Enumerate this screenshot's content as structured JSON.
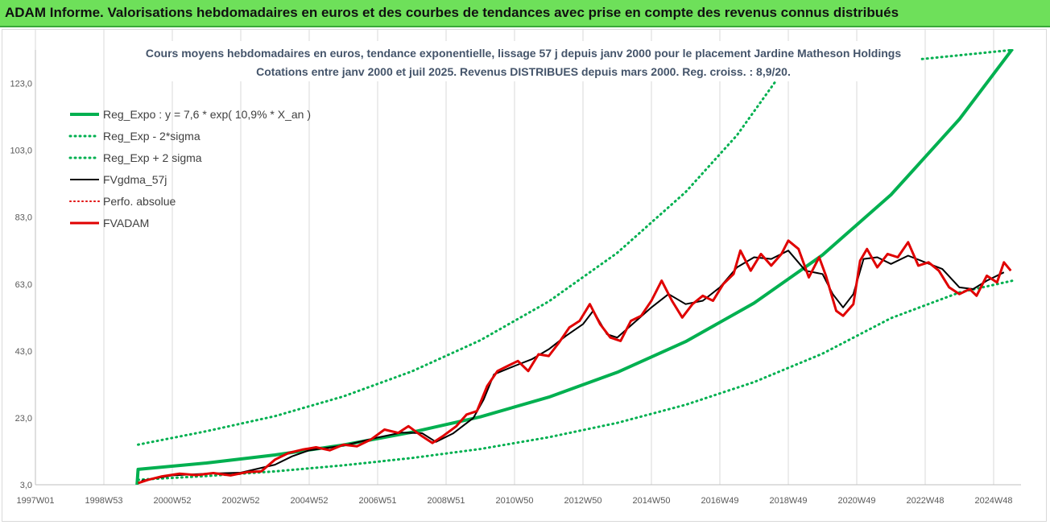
{
  "banner": {
    "title": "ADAM Informe. Valorisations hebdomadaires en euros et des courbes de tendances avec prise en compte des revenus connus distribués",
    "background": "#6ee05a"
  },
  "chart_data": {
    "type": "line",
    "title": [
      "Cours moyens hebdomadaires en euros, tendance exponentielle, lissage 57 j depuis janv 2000 pour le placement Jardine Matheson Holdings",
      "Cotations entre janv 2000 et juil 2025. Revenus DISTRIBUES depuis mars 2000. Reg. croiss. : 8,9/20."
    ],
    "xlabel": "",
    "ylabel": "",
    "grid": "vertical",
    "legend_position": "top-left",
    "x_range": [
      1997.0,
      2025.8
    ],
    "x_tick_values": [
      1997.0,
      1999.0,
      2001.0,
      2003.0,
      2005.0,
      2007.0,
      2009.0,
      2011.0,
      2013.0,
      2015.0,
      2017.0,
      2019.0,
      2021.0,
      2023.0,
      2025.0
    ],
    "x_tick_labels": [
      "1997W01",
      "1998W53",
      "2000W52",
      "2002W52",
      "2004W52",
      "2006W51",
      "2008W51",
      "2010W50",
      "2012W50",
      "2014W50",
      "2016W49",
      "2018W49",
      "2020W49",
      "2022W48",
      "2024W48"
    ],
    "y_range": [
      3.0,
      133.0
    ],
    "y_ticks": [
      "3,0",
      "23,0",
      "43,0",
      "63,0",
      "83,0",
      "103,0",
      "123,0"
    ],
    "y_tick_values": [
      3,
      23,
      43,
      63,
      83,
      103,
      123
    ],
    "series": [
      {
        "name": "Reg_Expo : y = 7,6 * exp( 10,9% *  X_an )",
        "color": "#00b050",
        "style": "solid",
        "width": 4,
        "points": [
          [
            1999.97,
            3.0
          ],
          [
            2000.0,
            7.6
          ],
          [
            2002,
            9.5
          ],
          [
            2004,
            11.9
          ],
          [
            2006,
            14.9
          ],
          [
            2008,
            18.7
          ],
          [
            2010,
            23.3
          ],
          [
            2012,
            29.2
          ],
          [
            2014,
            36.6
          ],
          [
            2016,
            45.8
          ],
          [
            2018,
            57.3
          ],
          [
            2020,
            71.7
          ],
          [
            2022,
            89.7
          ],
          [
            2024,
            112.3
          ],
          [
            2025.55,
            133.3
          ]
        ]
      },
      {
        "name": "Reg_Exp - 2*sigma",
        "color": "#00b050",
        "style": "dotted",
        "width": 3,
        "points": [
          [
            2000,
            4.5
          ],
          [
            2002,
            5.6
          ],
          [
            2004,
            7.0
          ],
          [
            2006,
            8.8
          ],
          [
            2008,
            11.0
          ],
          [
            2010,
            13.7
          ],
          [
            2012,
            17.2
          ],
          [
            2014,
            21.5
          ],
          [
            2016,
            26.9
          ],
          [
            2018,
            33.7
          ],
          [
            2020,
            42.2
          ],
          [
            2022,
            52.8
          ],
          [
            2024,
            60.5
          ],
          [
            2025.55,
            64.0
          ]
        ]
      },
      {
        "name": "Reg_Exp + 2 sigma",
        "color": "#00b050",
        "style": "dotted",
        "width": 3,
        "points": [
          [
            2000,
            15.0
          ],
          [
            2002,
            19.0
          ],
          [
            2004,
            23.5
          ],
          [
            2006,
            29.4
          ],
          [
            2008,
            36.9
          ],
          [
            2010,
            46.2
          ],
          [
            2012,
            57.8
          ],
          [
            2014,
            72.3
          ],
          [
            2016,
            90.5
          ],
          [
            2017.5,
            107.5
          ],
          [
            2018.6,
            123.2
          ],
          [
            2018.75,
            126.0
          ],
          [
            2025.55,
            133.0
          ]
        ]
      },
      {
        "name": "FVgdma_57j",
        "color": "#000000",
        "style": "solid",
        "width": 2,
        "points": [
          [
            2000.1,
            4.2
          ],
          [
            2001,
            5.8
          ],
          [
            2002,
            6.3
          ],
          [
            2003,
            6.6
          ],
          [
            2004,
            9.0
          ],
          [
            2004.5,
            11.5
          ],
          [
            2005,
            13.3
          ],
          [
            2006,
            14.7
          ],
          [
            2007,
            17.1
          ],
          [
            2007.7,
            18.6
          ],
          [
            2008.3,
            18.4
          ],
          [
            2008.7,
            15.8
          ],
          [
            2009.2,
            18.3
          ],
          [
            2009.8,
            23.0
          ],
          [
            2010.1,
            28.5
          ],
          [
            2010.4,
            36.0
          ],
          [
            2011,
            38.5
          ],
          [
            2011.5,
            40.5
          ],
          [
            2012,
            43.5
          ],
          [
            2012.5,
            47.5
          ],
          [
            2013,
            51.0
          ],
          [
            2013.3,
            55.0
          ],
          [
            2013.7,
            48.0
          ],
          [
            2014,
            47.0
          ],
          [
            2014.5,
            51.5
          ],
          [
            2015,
            56.0
          ],
          [
            2015.5,
            60.0
          ],
          [
            2016,
            57.0
          ],
          [
            2016.5,
            58.0
          ],
          [
            2017,
            62.0
          ],
          [
            2017.5,
            68.0
          ],
          [
            2018,
            71.0
          ],
          [
            2018.5,
            70.5
          ],
          [
            2019,
            73.0
          ],
          [
            2019.5,
            67.0
          ],
          [
            2020,
            66.0
          ],
          [
            2020.3,
            60.0
          ],
          [
            2020.6,
            56.0
          ],
          [
            2020.9,
            60.0
          ],
          [
            2021.2,
            70.5
          ],
          [
            2021.6,
            71.0
          ],
          [
            2022,
            69.0
          ],
          [
            2022.5,
            71.5
          ],
          [
            2023,
            69.5
          ],
          [
            2023.5,
            67.5
          ],
          [
            2024,
            62.0
          ],
          [
            2024.4,
            61.5
          ],
          [
            2024.8,
            64.0
          ],
          [
            2025.3,
            66.5
          ]
        ]
      },
      {
        "name": "Perfo. absolue",
        "color": "#e00000",
        "style": "dotted",
        "width": 2,
        "points": []
      },
      {
        "name": "FVADAM",
        "color": "#e00000",
        "style": "solid",
        "width": 3,
        "points": [
          [
            2000.0,
            3.5
          ],
          [
            2000.3,
            4.5
          ],
          [
            2000.7,
            5.5
          ],
          [
            2001.2,
            6.3
          ],
          [
            2001.7,
            5.9
          ],
          [
            2002.2,
            6.5
          ],
          [
            2002.7,
            5.8
          ],
          [
            2003.2,
            6.8
          ],
          [
            2003.6,
            7.0
          ],
          [
            2004.0,
            10.5
          ],
          [
            2004.4,
            12.5
          ],
          [
            2004.8,
            13.5
          ],
          [
            2005.2,
            14.2
          ],
          [
            2005.6,
            13.3
          ],
          [
            2006.0,
            15.0
          ],
          [
            2006.4,
            14.5
          ],
          [
            2006.8,
            16.5
          ],
          [
            2007.2,
            19.5
          ],
          [
            2007.6,
            18.5
          ],
          [
            2007.9,
            20.5
          ],
          [
            2008.3,
            17.5
          ],
          [
            2008.6,
            15.5
          ],
          [
            2008.9,
            17.5
          ],
          [
            2009.3,
            20.5
          ],
          [
            2009.6,
            24.0
          ],
          [
            2009.9,
            25.0
          ],
          [
            2010.2,
            32.5
          ],
          [
            2010.5,
            37.0
          ],
          [
            2010.8,
            38.5
          ],
          [
            2011.1,
            40.0
          ],
          [
            2011.4,
            37.0
          ],
          [
            2011.7,
            42.0
          ],
          [
            2012.0,
            41.5
          ],
          [
            2012.3,
            45.5
          ],
          [
            2012.6,
            50.0
          ],
          [
            2012.9,
            52.0
          ],
          [
            2013.2,
            57.0
          ],
          [
            2013.5,
            51.0
          ],
          [
            2013.8,
            47.0
          ],
          [
            2014.1,
            46.0
          ],
          [
            2014.4,
            52.0
          ],
          [
            2014.7,
            53.5
          ],
          [
            2015.0,
            58.0
          ],
          [
            2015.3,
            64.0
          ],
          [
            2015.6,
            58.0
          ],
          [
            2015.9,
            53.0
          ],
          [
            2016.2,
            57.0
          ],
          [
            2016.5,
            59.5
          ],
          [
            2016.8,
            58.0
          ],
          [
            2017.1,
            63.0
          ],
          [
            2017.4,
            66.0
          ],
          [
            2017.6,
            73.0
          ],
          [
            2017.9,
            67.0
          ],
          [
            2018.2,
            72.0
          ],
          [
            2018.5,
            68.5
          ],
          [
            2018.8,
            72.0
          ],
          [
            2019.0,
            76.0
          ],
          [
            2019.3,
            73.5
          ],
          [
            2019.6,
            65.0
          ],
          [
            2019.9,
            71.0
          ],
          [
            2020.1,
            65.5
          ],
          [
            2020.4,
            55.0
          ],
          [
            2020.6,
            53.5
          ],
          [
            2020.9,
            57.0
          ],
          [
            2021.1,
            70.0
          ],
          [
            2021.3,
            73.5
          ],
          [
            2021.6,
            68.0
          ],
          [
            2021.9,
            72.0
          ],
          [
            2022.2,
            71.0
          ],
          [
            2022.5,
            75.5
          ],
          [
            2022.8,
            68.5
          ],
          [
            2023.1,
            69.5
          ],
          [
            2023.4,
            67.0
          ],
          [
            2023.7,
            62.0
          ],
          [
            2024.0,
            60.0
          ],
          [
            2024.3,
            61.5
          ],
          [
            2024.5,
            59.5
          ],
          [
            2024.8,
            65.5
          ],
          [
            2025.1,
            63.5
          ],
          [
            2025.3,
            69.5
          ],
          [
            2025.5,
            67.0
          ]
        ]
      }
    ]
  }
}
